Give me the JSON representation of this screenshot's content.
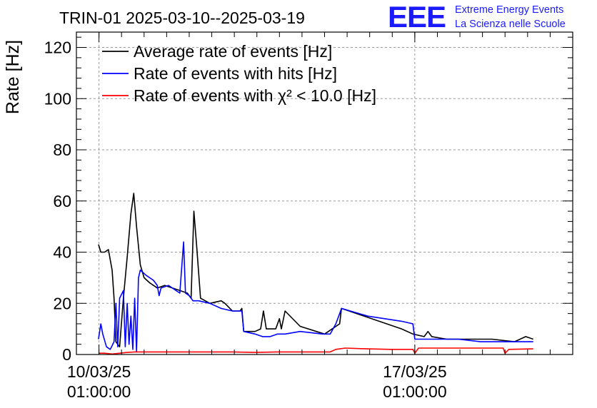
{
  "chart_data": {
    "type": "line",
    "title": "TRIN-01 2025-03-10--2025-03-19",
    "ylabel": "Rate [Hz]",
    "xlabel": "",
    "ylim": [
      0,
      126
    ],
    "yticks": [
      0,
      20,
      40,
      60,
      80,
      100,
      120
    ],
    "xlim": [
      "2025-03-09 13:00",
      "2025-03-20 13:00"
    ],
    "xticks": [
      {
        "date": "2025-03-10 01:00",
        "label_date": "10/03/25",
        "label_time": "01:00:00"
      },
      {
        "date": "2025-03-17 01:00",
        "label_date": "17/03/25",
        "label_time": "01:00:00"
      }
    ],
    "grid": true,
    "legend_position": "top-left",
    "series": [
      {
        "name": "Average rate of events [Hz]",
        "color": "#000000",
        "points": [
          [
            "2025-03-10 00:45",
            43
          ],
          [
            "2025-03-10 02:00",
            40
          ],
          [
            "2025-03-10 04:00",
            40
          ],
          [
            "2025-03-10 06:00",
            41
          ],
          [
            "2025-03-10 08:00",
            33
          ],
          [
            "2025-03-10 09:00",
            22
          ],
          [
            "2025-03-10 10:00",
            5
          ],
          [
            "2025-03-10 12:00",
            3
          ],
          [
            "2025-03-10 14:00",
            22
          ],
          [
            "2025-03-10 16:00",
            38
          ],
          [
            "2025-03-10 18:00",
            55
          ],
          [
            "2025-03-10 19:30",
            63
          ],
          [
            "2025-03-10 21:00",
            50
          ],
          [
            "2025-03-10 23:00",
            35
          ],
          [
            "2025-03-11 01:00",
            30
          ],
          [
            "2025-03-11 04:00",
            28
          ],
          [
            "2025-03-11 08:00",
            26
          ],
          [
            "2025-03-11 12:00",
            27
          ],
          [
            "2025-03-11 16:00",
            26
          ],
          [
            "2025-03-11 20:00",
            25
          ],
          [
            "2025-03-12 00:00",
            24
          ],
          [
            "2025-03-12 02:00",
            22
          ],
          [
            "2025-03-12 03:30",
            56
          ],
          [
            "2025-03-12 05:00",
            42
          ],
          [
            "2025-03-12 07:00",
            22
          ],
          [
            "2025-03-12 12:00",
            20
          ],
          [
            "2025-03-12 18:00",
            21
          ],
          [
            "2025-03-12 20:00",
            20
          ],
          [
            "2025-03-13 00:00",
            17
          ],
          [
            "2025-03-13 04:00",
            17
          ],
          [
            "2025-03-13 05:00",
            18
          ],
          [
            "2025-03-13 06:00",
            9
          ],
          [
            "2025-03-13 12:00",
            9
          ],
          [
            "2025-03-13 15:00",
            10
          ],
          [
            "2025-03-13 16:30",
            17
          ],
          [
            "2025-03-13 18:00",
            10
          ],
          [
            "2025-03-13 23:00",
            10
          ],
          [
            "2025-03-14 01:00",
            14
          ],
          [
            "2025-03-14 02:00",
            10
          ],
          [
            "2025-03-14 04:00",
            17
          ],
          [
            "2025-03-14 12:00",
            11
          ],
          [
            "2025-03-15 01:00",
            8
          ],
          [
            "2025-03-15 09:00",
            12
          ],
          [
            "2025-03-15 10:00",
            18
          ],
          [
            "2025-03-16 18:00",
            10
          ],
          [
            "2025-03-17 00:00",
            8
          ],
          [
            "2025-03-17 06:00",
            7
          ],
          [
            "2025-03-17 08:00",
            9
          ],
          [
            "2025-03-17 10:00",
            7
          ],
          [
            "2025-03-17 18:00",
            6
          ],
          [
            "2025-03-18 06:00",
            6
          ],
          [
            "2025-03-18 18:00",
            6
          ],
          [
            "2025-03-19 06:00",
            5
          ],
          [
            "2025-03-19 12:00",
            7
          ],
          [
            "2025-03-19 16:00",
            6
          ]
        ]
      },
      {
        "name": "Rate of events with hits [Hz]",
        "color": "#0000ff",
        "points": [
          [
            "2025-03-10 00:45",
            6
          ],
          [
            "2025-03-10 02:00",
            12
          ],
          [
            "2025-03-10 03:00",
            8
          ],
          [
            "2025-03-10 05:00",
            3
          ],
          [
            "2025-03-10 07:00",
            2
          ],
          [
            "2025-03-10 09:00",
            5
          ],
          [
            "2025-03-10 10:00",
            20
          ],
          [
            "2025-03-10 11:00",
            3
          ],
          [
            "2025-03-10 12:00",
            22
          ],
          [
            "2025-03-10 14:00",
            25
          ],
          [
            "2025-03-10 15:00",
            3
          ],
          [
            "2025-03-10 16:00",
            20
          ],
          [
            "2025-03-10 17:00",
            4
          ],
          [
            "2025-03-10 18:00",
            15
          ],
          [
            "2025-03-10 19:00",
            2
          ],
          [
            "2025-03-10 20:00",
            22
          ],
          [
            "2025-03-10 21:00",
            1
          ],
          [
            "2025-03-10 22:00",
            30
          ],
          [
            "2025-03-10 23:00",
            33
          ],
          [
            "2025-03-11 02:00",
            31
          ],
          [
            "2025-03-11 06:00",
            29
          ],
          [
            "2025-03-11 08:00",
            27
          ],
          [
            "2025-03-11 09:00",
            23
          ],
          [
            "2025-03-11 10:00",
            26
          ],
          [
            "2025-03-11 14:00",
            27
          ],
          [
            "2025-03-11 18:00",
            25
          ],
          [
            "2025-03-11 20:00",
            24
          ],
          [
            "2025-03-11 22:00",
            44
          ],
          [
            "2025-03-11 23:00",
            24
          ],
          [
            "2025-03-12 01:00",
            23
          ],
          [
            "2025-03-12 03:00",
            21
          ],
          [
            "2025-03-12 06:00",
            21
          ],
          [
            "2025-03-12 12:00",
            20
          ],
          [
            "2025-03-12 18:00",
            18
          ],
          [
            "2025-03-13 00:00",
            17
          ],
          [
            "2025-03-13 05:00",
            17
          ],
          [
            "2025-03-13 06:00",
            9
          ],
          [
            "2025-03-13 12:00",
            8
          ],
          [
            "2025-03-13 16:00",
            7
          ],
          [
            "2025-03-13 20:00",
            7
          ],
          [
            "2025-03-14 00:00",
            8
          ],
          [
            "2025-03-14 04:00",
            8
          ],
          [
            "2025-03-14 12:00",
            9
          ],
          [
            "2025-03-15 00:00",
            8
          ],
          [
            "2025-03-15 04:00",
            8
          ],
          [
            "2025-03-15 07:00",
            12
          ],
          [
            "2025-03-15 09:00",
            16
          ],
          [
            "2025-03-15 10:00",
            18
          ],
          [
            "2025-03-16 00:00",
            15
          ],
          [
            "2025-03-16 18:00",
            13
          ],
          [
            "2025-03-17 00:00",
            12
          ],
          [
            "2025-03-17 01:00",
            6
          ],
          [
            "2025-03-17 03:00",
            6
          ],
          [
            "2025-03-17 06:00",
            6
          ],
          [
            "2025-03-17 12:00",
            6
          ],
          [
            "2025-03-18 00:00",
            6
          ],
          [
            "2025-03-18 12:00",
            5
          ],
          [
            "2025-03-19 00:00",
            5
          ],
          [
            "2025-03-19 08:00",
            5
          ],
          [
            "2025-03-19 16:00",
            5
          ]
        ]
      },
      {
        "name": "Rate of events with χ² < 10.0 [Hz]",
        "color": "#ff0000",
        "points": [
          [
            "2025-03-10 00:45",
            0.5
          ],
          [
            "2025-03-10 04:00",
            0.5
          ],
          [
            "2025-03-10 08:00",
            0.2
          ],
          [
            "2025-03-10 12:00",
            0.5
          ],
          [
            "2025-03-10 16:00",
            0.8
          ],
          [
            "2025-03-10 20:00",
            1.0
          ],
          [
            "2025-03-11 00:00",
            1.0
          ],
          [
            "2025-03-11 12:00",
            1.0
          ],
          [
            "2025-03-12 00:00",
            1.0
          ],
          [
            "2025-03-12 12:00",
            1.0
          ],
          [
            "2025-03-13 00:00",
            1.0
          ],
          [
            "2025-03-13 12:00",
            0.8
          ],
          [
            "2025-03-14 00:00",
            1.0
          ],
          [
            "2025-03-14 12:00",
            1.0
          ],
          [
            "2025-03-15 00:00",
            1.0
          ],
          [
            "2025-03-15 04:00",
            1.0
          ],
          [
            "2025-03-15 07:00",
            2.0
          ],
          [
            "2025-03-15 12:00",
            2.5
          ],
          [
            "2025-03-16 00:00",
            2.2
          ],
          [
            "2025-03-16 12:00",
            2.0
          ],
          [
            "2025-03-17 00:00",
            2.0
          ],
          [
            "2025-03-17 01:00",
            0.5
          ],
          [
            "2025-03-17 03:00",
            2.5
          ],
          [
            "2025-03-17 12:00",
            2.5
          ],
          [
            "2025-03-18 00:00",
            2.5
          ],
          [
            "2025-03-18 12:00",
            2.5
          ],
          [
            "2025-03-19 00:00",
            2.5
          ],
          [
            "2025-03-19 01:00",
            0.5
          ],
          [
            "2025-03-19 03:00",
            2.0
          ],
          [
            "2025-03-19 16:00",
            2.2
          ]
        ]
      }
    ]
  },
  "logo": {
    "mark": "EEE",
    "line1": "Extreme Energy Events",
    "line2": "La Scienza nelle Scuole",
    "color": "#1a1aff"
  }
}
